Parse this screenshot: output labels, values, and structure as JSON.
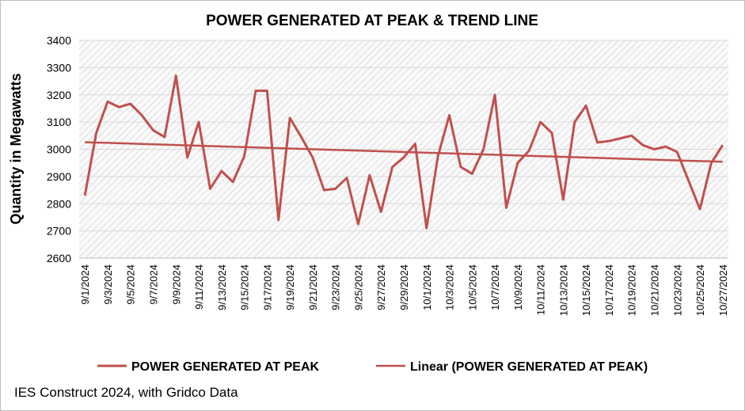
{
  "chart_data": {
    "type": "line",
    "title": "POWER GENERATED AT PEAK & TREND LINE",
    "y_label": "Quantity in Megawatts",
    "source": "IES Construct 2024, with Gridco Data",
    "categories": [
      "9/1/2024",
      null,
      "9/3/2024",
      null,
      "9/5/2024",
      null,
      "9/7/2024",
      null,
      "9/9/2024",
      null,
      "9/11/2024",
      null,
      "9/13/2024",
      null,
      "9/15/2024",
      null,
      "9/17/2024",
      null,
      "9/19/2024",
      null,
      "9/21/2024",
      null,
      "9/23/2024",
      null,
      "9/25/2024",
      null,
      "9/27/2024",
      null,
      "9/29/2024",
      null,
      "10/1/2024",
      null,
      "10/3/2024",
      null,
      "10/5/2024",
      null,
      "10/7/2024",
      null,
      "10/9/2024",
      null,
      "10/11/2024",
      null,
      "10/13/2024",
      null,
      "10/15/2024",
      null,
      "10/17/2024",
      null,
      "10/19/2024",
      null,
      "10/21/2024",
      null,
      "10/23/2024",
      null,
      "10/25/2024",
      null,
      "10/27/2024"
    ],
    "series": [
      {
        "name": "POWER GENERATED AT PEAK",
        "color": "#c0504d",
        "values": [
          2830,
          3060,
          3175,
          3155,
          3167,
          3125,
          3070,
          3045,
          3270,
          2970,
          3100,
          2855,
          2920,
          2880,
          2975,
          3215,
          3215,
          2740,
          3115,
          3045,
          2970,
          2850,
          2855,
          2895,
          2725,
          2905,
          2770,
          2935,
          2970,
          3020,
          2710,
          2975,
          3125,
          2935,
          2910,
          3000,
          3200,
          2785,
          2950,
          2995,
          3100,
          3060,
          2815,
          3100,
          3160,
          3025,
          3030,
          3040,
          3050,
          3015,
          3000,
          3010,
          2990,
          2885,
          2780,
          2950,
          3015
        ]
      }
    ],
    "trendline": {
      "type": "linear",
      "name": "Linear (POWER GENERATED AT PEAK)",
      "color": "#c0504d"
    },
    "ylim": [
      2600,
      3400
    ],
    "yticks": [
      2600,
      2700,
      2800,
      2900,
      3000,
      3100,
      3200,
      3300,
      3400
    ],
    "grid": true
  }
}
